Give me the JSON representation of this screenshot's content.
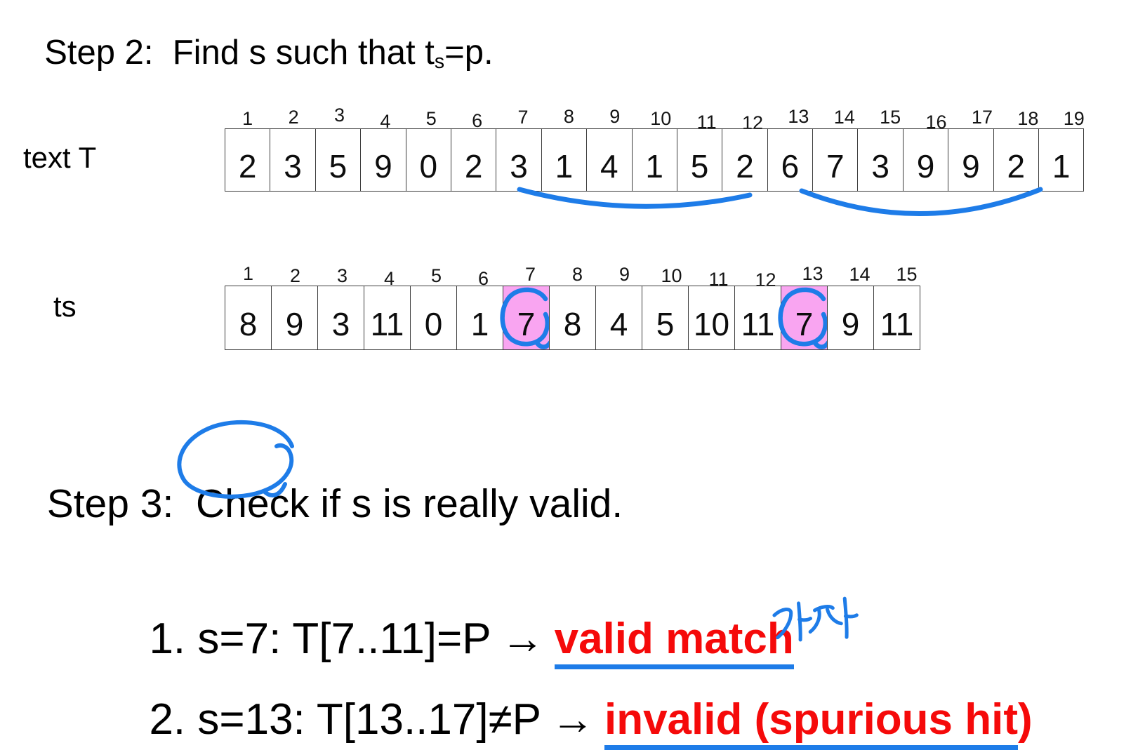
{
  "step2": {
    "title_prefix": "Step 2:  Find s such that t",
    "title_sub": "s",
    "title_suffix": "=p."
  },
  "text_t_table": {
    "label": "text T",
    "indices": [
      "1",
      "2",
      "3",
      "4",
      "5",
      "6",
      "7",
      "8",
      "9",
      "10",
      "11",
      "12",
      "13",
      "14",
      "15",
      "16",
      "17",
      "18",
      "19"
    ],
    "values": [
      "2",
      "3",
      "5",
      "9",
      "0",
      "2",
      "3",
      "1",
      "4",
      "1",
      "5",
      "2",
      "6",
      "7",
      "3",
      "9",
      "9",
      "2",
      "1"
    ]
  },
  "ts_table": {
    "label": "ts",
    "indices": [
      "1",
      "2",
      "3",
      "4",
      "5",
      "6",
      "7",
      "8",
      "9",
      "10",
      "11",
      "12",
      "13",
      "14",
      "15"
    ],
    "values": [
      "8",
      "9",
      "3",
      "11",
      "0",
      "1",
      "7",
      "8",
      "4",
      "5",
      "10",
      "11",
      "7",
      "9",
      "11"
    ],
    "highlighted_indices": [
      7,
      13
    ]
  },
  "step3": {
    "prefix": "Step 3:  ",
    "circled_word": "Check",
    "suffix": " if s is really valid."
  },
  "results": [
    {
      "black": "1. s=7: T[7..11]=P",
      "arrow": "→",
      "red_underlined": "valid match",
      "red_suffix": ""
    },
    {
      "black": "2. s=13: T[13..17]≠P",
      "arrow": "→",
      "red_underlined": "invalid (spurious hit",
      "red_suffix": ")"
    }
  ],
  "annotation": {
    "korean_text": "가짜"
  },
  "colors": {
    "ink_blue": "#1E7CE8",
    "highlight_pink": "#F9A5F1",
    "emphasis_red": "#F50A0A"
  }
}
